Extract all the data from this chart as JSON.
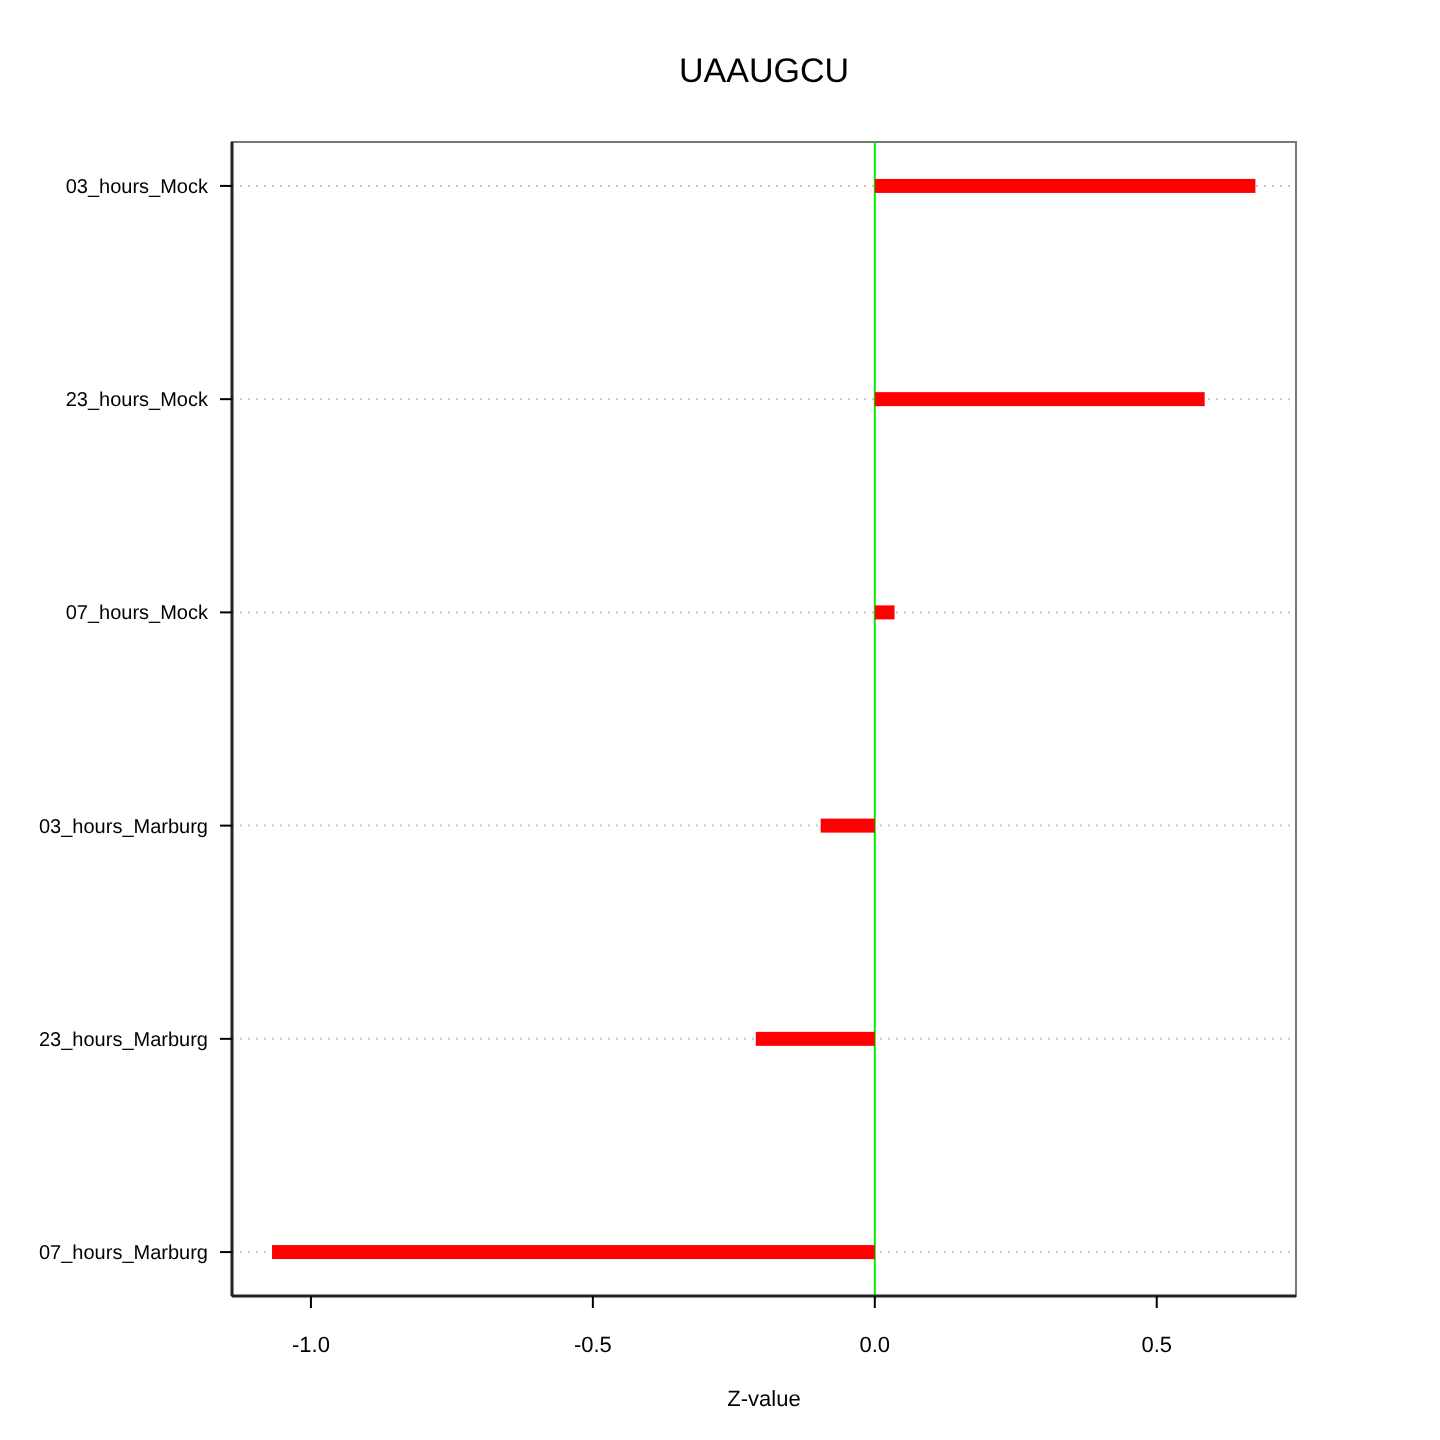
{
  "chart_data": {
    "type": "bar",
    "orientation": "horizontal",
    "title": "UAAUGCU",
    "xlabel": "Z-value",
    "categories": [
      "03_hours_Mock",
      "23_hours_Mock",
      "07_hours_Mock",
      "03_hours_Marburg",
      "23_hours_Marburg",
      "07_hours_Marburg"
    ],
    "values": [
      0.675,
      0.585,
      0.035,
      -0.096,
      -0.211,
      -1.069
    ],
    "color": "#ff0000",
    "xlim": [
      -1.14,
      0.747
    ],
    "xticks": [
      {
        "value": -1,
        "label": "-1.0"
      },
      -0.5,
      {
        "value": 0,
        "label": "0.0"
      },
      0.5
    ],
    "ref_lines": [
      {
        "axis": "x",
        "value": 0,
        "color": "#00ee00"
      }
    ],
    "grid": "y"
  }
}
